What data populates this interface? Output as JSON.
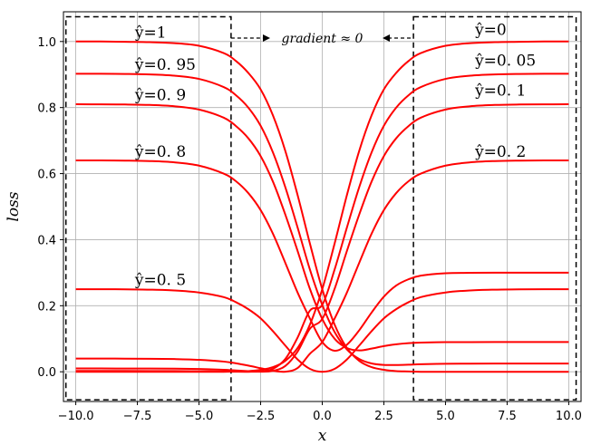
{
  "chart_data": {
    "type": "line",
    "title": "",
    "xlabel": "x",
    "ylabel": "loss",
    "xlim": [
      -10.5,
      10.5
    ],
    "ylim": [
      -0.09,
      1.09
    ],
    "xticks": [
      -10.0,
      -7.5,
      -5.0,
      -2.5,
      0.0,
      2.5,
      5.0,
      7.5,
      10.0
    ],
    "xtick_labels": [
      "−10.0",
      "−7.5",
      "−5.0",
      "−2.5",
      "0.0",
      "2.5",
      "5.0",
      "7.5",
      "10.0"
    ],
    "yticks": [
      0.0,
      0.2,
      0.4,
      0.6,
      0.8,
      1.0
    ],
    "ytick_labels": [
      "0.0",
      "0.2",
      "0.4",
      "0.6",
      "0.8",
      "1.0"
    ],
    "grid": true,
    "line_color": "#ff0000",
    "box_color": "#000000",
    "x": [
      -10,
      -9,
      -8,
      -7,
      -6,
      -5,
      -4,
      -3.5,
      -3,
      -2.5,
      -2,
      -1.5,
      -1,
      -0.5,
      0,
      0.5,
      1,
      1.5,
      2,
      2.5,
      3,
      3.5,
      4,
      5,
      6,
      7,
      8,
      9,
      10
    ],
    "series": [
      {
        "values": [
          1.0,
          1.0,
          0.999,
          0.998,
          0.995,
          0.987,
          0.965,
          0.941,
          0.905,
          0.855,
          0.776,
          0.669,
          0.535,
          0.388,
          0.25,
          0.143,
          0.072,
          0.033,
          0.014,
          0.006,
          0.002,
          0.001,
          0.0,
          0.0,
          0.0,
          0.0,
          0.0,
          0.0,
          0.0
        ]
      },
      {
        "values": [
          0.9025,
          0.9023,
          0.9018,
          0.9004,
          0.8966,
          0.8867,
          0.862,
          0.8372,
          0.7998,
          0.7449,
          0.664,
          0.5591,
          0.4367,
          0.3093,
          0.2025,
          0.1205,
          0.0677,
          0.0387,
          0.0253,
          0.0208,
          0.0204,
          0.0214,
          0.0228,
          0.0242,
          0.0247,
          0.0249,
          0.025,
          0.025,
          0.025
        ]
      },
      {
        "values": [
          0.81,
          0.8098,
          0.8093,
          0.8079,
          0.804,
          0.794,
          0.7694,
          0.7439,
          0.707,
          0.6531,
          0.5756,
          0.4762,
          0.3658,
          0.2509,
          0.16,
          0.1002,
          0.072,
          0.0646,
          0.0701,
          0.0778,
          0.0832,
          0.0866,
          0.0884,
          0.0897,
          0.0899,
          0.09,
          0.09,
          0.09,
          0.09
        ]
      },
      {
        "values": [
          0.64,
          0.6399,
          0.6394,
          0.638,
          0.6341,
          0.6242,
          0.6,
          0.5768,
          0.541,
          0.4895,
          0.4178,
          0.33,
          0.2398,
          0.161,
          0.09,
          0.0638,
          0.082,
          0.1256,
          0.1791,
          0.2274,
          0.2611,
          0.2801,
          0.2911,
          0.2983,
          0.2996,
          0.2999,
          0.3,
          0.3,
          0.3
        ]
      },
      {
        "values": [
          0.25,
          0.25,
          0.2497,
          0.2487,
          0.2463,
          0.2401,
          0.2261,
          0.2106,
          0.1896,
          0.1618,
          0.1229,
          0.0794,
          0.0372,
          0.0088,
          0.0,
          0.0088,
          0.0372,
          0.0794,
          0.1229,
          0.1618,
          0.1896,
          0.2106,
          0.2261,
          0.2401,
          0.2463,
          0.2487,
          0.2497,
          0.25,
          0.25
        ]
      },
      {
        "values": [
          0.04,
          0.04,
          0.0398,
          0.0394,
          0.0385,
          0.0362,
          0.0309,
          0.0256,
          0.0187,
          0.0108,
          0.003,
          0.0003,
          0.0112,
          0.0546,
          0.09,
          0.161,
          0.2398,
          0.33,
          0.4178,
          0.4895,
          0.541,
          0.5768,
          0.6,
          0.6242,
          0.6341,
          0.638,
          0.6394,
          0.6399,
          0.64
        ]
      },
      {
        "values": [
          0.01,
          0.01,
          0.0099,
          0.0097,
          0.0093,
          0.0083,
          0.006,
          0.0039,
          0.0018,
          0.0002,
          0.0028,
          0.0176,
          0.0612,
          0.1305,
          0.16,
          0.2509,
          0.3658,
          0.4762,
          0.5756,
          0.6531,
          0.707,
          0.7439,
          0.7694,
          0.794,
          0.804,
          0.8079,
          0.8093,
          0.8098,
          0.81
        ]
      },
      {
        "values": [
          0.0025,
          0.0025,
          0.0025,
          0.0024,
          0.0022,
          0.0017,
          0.0008,
          0.0002,
          0.0,
          0.0012,
          0.0089,
          0.0385,
          0.1036,
          0.1853,
          0.2025,
          0.3093,
          0.4367,
          0.5591,
          0.664,
          0.7449,
          0.7998,
          0.8372,
          0.862,
          0.8867,
          0.8966,
          0.9004,
          0.9018,
          0.9023,
          0.9025
        ]
      },
      {
        "values": [
          0.0,
          0.0,
          0.0,
          0.0,
          0.0,
          0.0,
          0.0,
          0.001,
          0.002,
          0.006,
          0.014,
          0.033,
          0.072,
          0.143,
          0.25,
          0.388,
          0.535,
          0.669,
          0.776,
          0.855,
          0.905,
          0.941,
          0.965,
          0.987,
          0.995,
          0.998,
          0.999,
          1.0,
          1.0
        ]
      }
    ],
    "annotations": [
      {
        "text": "ŷ=1",
        "x": -7.6,
        "y": 1.012
      },
      {
        "text": "ŷ=0. 95",
        "x": -7.6,
        "y": 0.915
      },
      {
        "text": "ŷ=0. 9",
        "x": -7.6,
        "y": 0.822
      },
      {
        "text": "ŷ=0. 8",
        "x": -7.6,
        "y": 0.651
      },
      {
        "text": "ŷ=0. 5",
        "x": -7.6,
        "y": 0.262
      },
      {
        "text": "ŷ=0",
        "x": 6.2,
        "y": 1.02
      },
      {
        "text": "ŷ=0. 05",
        "x": 6.2,
        "y": 0.927
      },
      {
        "text": "ŷ=0. 1",
        "x": 6.2,
        "y": 0.836
      },
      {
        "text": "ŷ=0. 2",
        "x": 6.2,
        "y": 0.651
      }
    ],
    "gradient_note": "gradient ≈ 0",
    "boxes": [
      {
        "x": [
          -10.4,
          -3.7
        ],
        "y": [
          -0.085,
          1.075
        ]
      },
      {
        "x": [
          3.7,
          10.3
        ],
        "y": [
          -0.085,
          1.075
        ]
      }
    ]
  }
}
